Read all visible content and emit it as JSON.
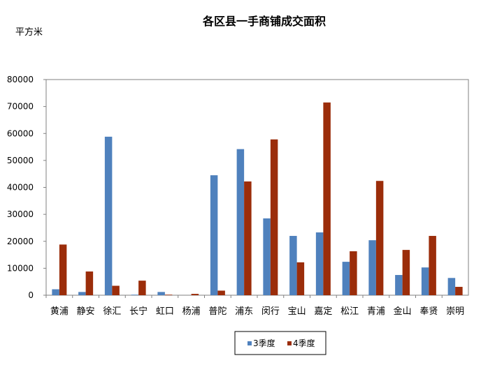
{
  "chart_data": {
    "type": "bar",
    "title": "各区县一手商铺成交面积",
    "ylabel": "平方米",
    "xlabel": "",
    "ylim": [
      0,
      80000
    ],
    "yticks": [
      0,
      10000,
      20000,
      30000,
      40000,
      50000,
      60000,
      70000,
      80000
    ],
    "grid": false,
    "legend_position": "bottom",
    "categories": [
      "黄浦",
      "静安",
      "徐汇",
      "长宁",
      "虹口",
      "杨浦",
      "普陀",
      "浦东",
      "闵行",
      "宝山",
      "嘉定",
      "松江",
      "青浦",
      "金山",
      "奉贤",
      "崇明"
    ],
    "series": [
      {
        "name": "3季度",
        "color": "#4f81bd",
        "values": [
          2200,
          1200,
          58800,
          200,
          1200,
          0,
          44500,
          54200,
          28500,
          22000,
          23300,
          12400,
          20400,
          7500,
          10300,
          6400
        ]
      },
      {
        "name": "4季度",
        "color": "#9b2d0a",
        "values": [
          18800,
          8800,
          3500,
          5400,
          200,
          500,
          1700,
          42200,
          57800,
          12200,
          71500,
          16300,
          42400,
          16800,
          22000,
          3100
        ]
      }
    ]
  }
}
